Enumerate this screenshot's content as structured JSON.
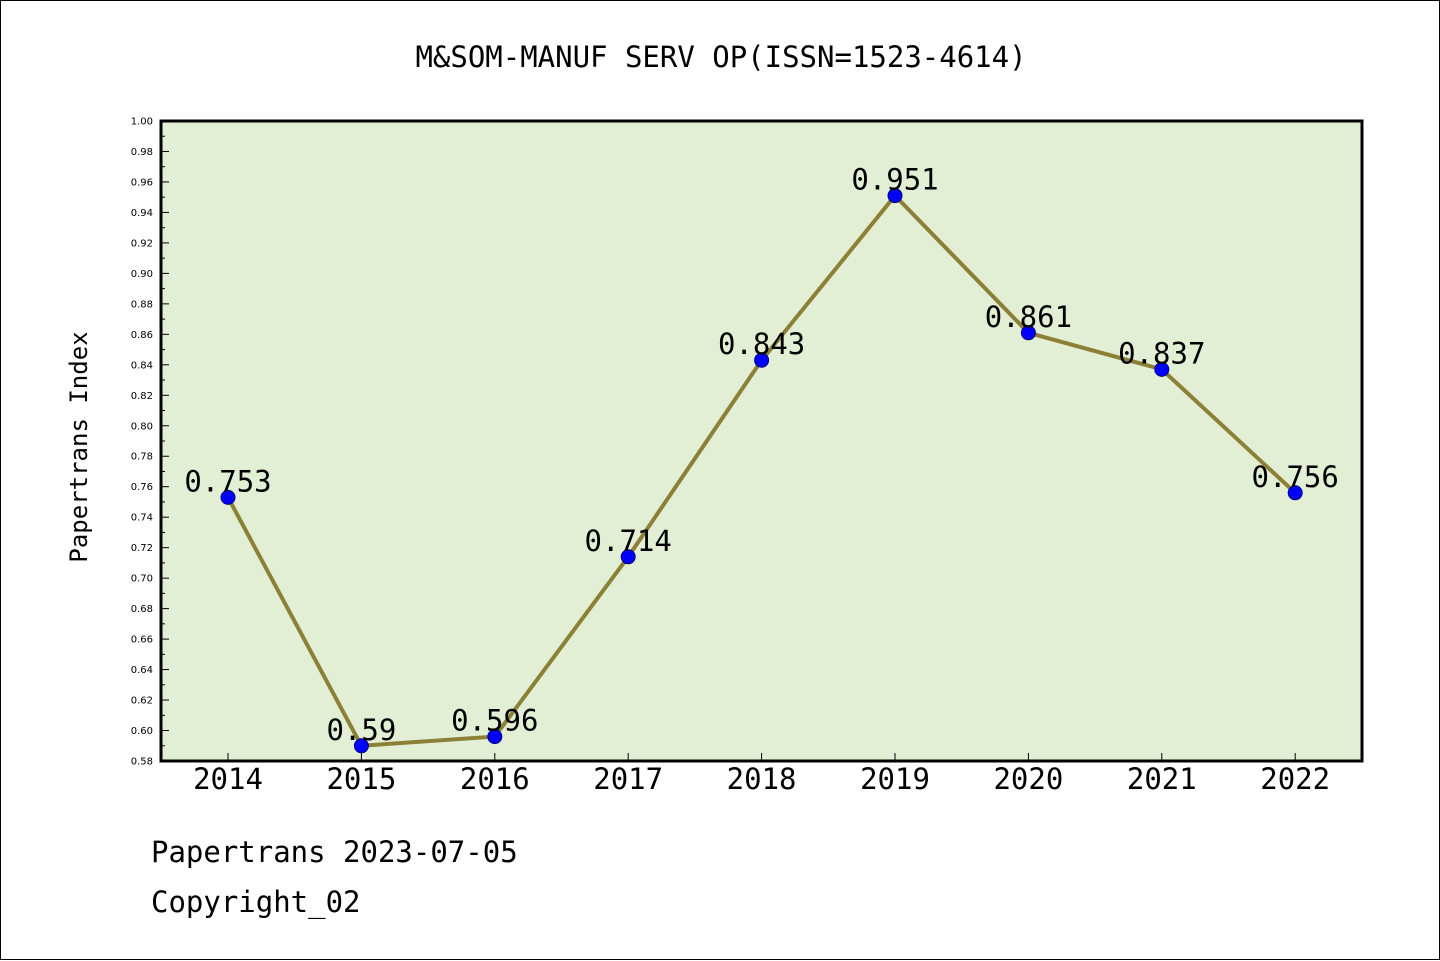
{
  "chart_data": {
    "type": "line",
    "title": "M&SOM-MANUF SERV OP(ISSN=1523-4614)",
    "xlabel": "",
    "ylabel": "Papertrans Index",
    "categories": [
      "2014",
      "2015",
      "2016",
      "2017",
      "2018",
      "2019",
      "2020",
      "2021",
      "2022"
    ],
    "values": [
      0.753,
      0.59,
      0.596,
      0.714,
      0.843,
      0.951,
      0.861,
      0.837,
      0.756
    ],
    "data_labels": [
      "0.753",
      "0.59",
      "0.596",
      "0.714",
      "0.843",
      "0.951",
      "0.861",
      "0.837",
      "0.756"
    ],
    "ylim": [
      0.58,
      1.0
    ],
    "y_ticks": [
      "0.58",
      "0.60",
      "0.62",
      "0.64",
      "0.66",
      "0.68",
      "0.70",
      "0.72",
      "0.74",
      "0.76",
      "0.78",
      "0.80",
      "0.82",
      "0.84",
      "0.86",
      "0.88",
      "0.90",
      "0.92",
      "0.94",
      "0.96",
      "0.98",
      "1.00"
    ],
    "grid": false,
    "colors": {
      "plot_background": "#e2efd5",
      "line": "#8b8036",
      "marker": "#0000ff"
    }
  },
  "footer": {
    "date_line": "Papertrans 2023-07-05",
    "copyright": "Copyright_02"
  }
}
